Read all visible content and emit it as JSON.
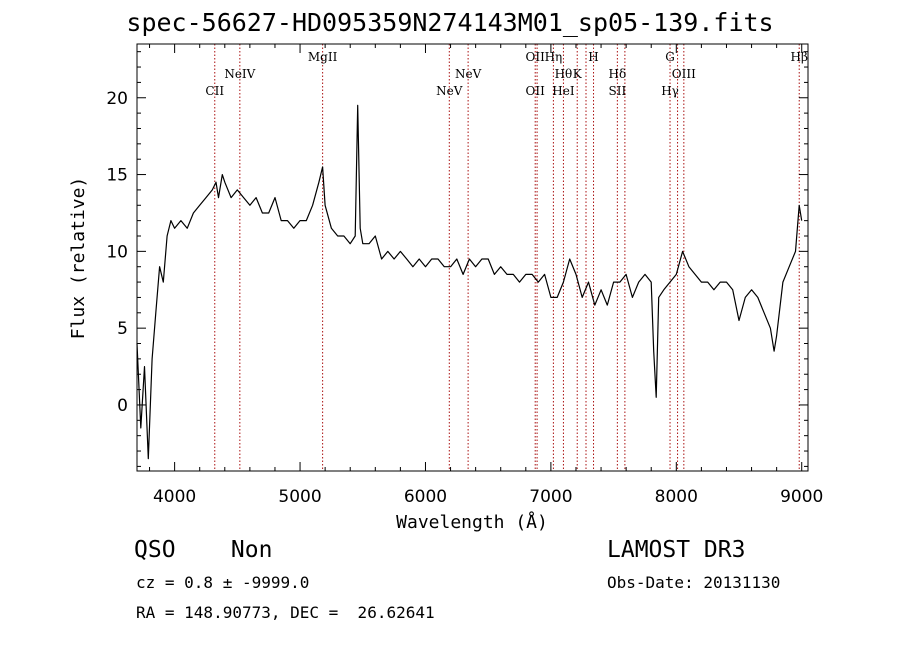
{
  "header": {
    "title": "spec-56627-HD095359N274143M01_sp05-139.fits"
  },
  "info": {
    "class_label": "QSO    Non",
    "cz_text": "cz = 0.8 ± -9999.0",
    "radec_text": "RA = 148.90773, DEC =  26.62641",
    "survey": "LAMOST DR3",
    "obs_date": "Obs-Date: 20131130"
  },
  "chart_data": {
    "type": "line",
    "title": "spec-56627-HD095359N274143M01_sp05-139.fits",
    "xlabel": "Wavelength (Å)",
    "ylabel": "Flux (relative)",
    "xlim": [
      3700,
      9050
    ],
    "ylim": [
      -4.3,
      23.5
    ],
    "xticks": [
      4000,
      5000,
      6000,
      7000,
      8000,
      9000
    ],
    "yticks": [
      0,
      5,
      10,
      15,
      20
    ],
    "series": [
      {
        "name": "flux",
        "x": [
          3700,
          3730,
          3760,
          3790,
          3820,
          3850,
          3880,
          3910,
          3940,
          3970,
          4000,
          4050,
          4100,
          4150,
          4200,
          4250,
          4300,
          4330,
          4350,
          4380,
          4400,
          4450,
          4500,
          4550,
          4600,
          4650,
          4700,
          4750,
          4800,
          4850,
          4900,
          4950,
          5000,
          5050,
          5100,
          5150,
          5180,
          5200,
          5250,
          5300,
          5350,
          5400,
          5440,
          5460,
          5480,
          5500,
          5550,
          5600,
          5650,
          5700,
          5750,
          5800,
          5850,
          5900,
          5950,
          6000,
          6050,
          6100,
          6150,
          6200,
          6250,
          6300,
          6350,
          6400,
          6450,
          6500,
          6550,
          6600,
          6650,
          6700,
          6750,
          6800,
          6850,
          6900,
          6950,
          7000,
          7050,
          7100,
          7150,
          7200,
          7250,
          7300,
          7350,
          7400,
          7450,
          7500,
          7550,
          7600,
          7650,
          7700,
          7750,
          7800,
          7820,
          7840,
          7860,
          7900,
          7950,
          8000,
          8050,
          8100,
          8150,
          8200,
          8250,
          8300,
          8350,
          8400,
          8450,
          8500,
          8550,
          8600,
          8650,
          8700,
          8750,
          8780,
          8800,
          8850,
          8900,
          8950,
          8980,
          9000
        ],
        "y": [
          4.0,
          -1.5,
          2.5,
          -3.5,
          3.0,
          6.0,
          9.0,
          8.0,
          11.0,
          12.0,
          11.5,
          12.0,
          11.5,
          12.5,
          13.0,
          13.5,
          14.0,
          14.5,
          13.5,
          15.0,
          14.5,
          13.5,
          14.0,
          13.5,
          13.0,
          13.5,
          12.5,
          12.5,
          13.5,
          12.0,
          12.0,
          11.5,
          12.0,
          12.0,
          13.0,
          14.5,
          15.5,
          13.0,
          11.5,
          11.0,
          11.0,
          10.5,
          11.0,
          19.5,
          11.5,
          10.5,
          10.5,
          11.0,
          9.5,
          10.0,
          9.5,
          10.0,
          9.5,
          9.0,
          9.5,
          9.0,
          9.5,
          9.5,
          9.0,
          9.0,
          9.5,
          8.5,
          9.5,
          9.0,
          9.5,
          9.5,
          8.5,
          9.0,
          8.5,
          8.5,
          8.0,
          8.5,
          8.5,
          8.0,
          8.5,
          7.0,
          7.0,
          8.0,
          9.5,
          8.5,
          7.0,
          8.0,
          6.5,
          7.5,
          6.5,
          8.0,
          8.0,
          8.5,
          7.0,
          8.0,
          8.5,
          8.0,
          3.5,
          0.5,
          7.0,
          7.5,
          8.0,
          8.5,
          10.0,
          9.0,
          8.5,
          8.0,
          8.0,
          7.5,
          8.0,
          8.0,
          7.5,
          5.5,
          7.0,
          7.5,
          7.0,
          6.0,
          5.0,
          3.5,
          4.5,
          8.0,
          9.0,
          10.0,
          13.0,
          12.0
        ]
      }
    ],
    "lines": [
      {
        "wave": 4320,
        "top": "",
        "bottom": "CII"
      },
      {
        "wave": 4520,
        "top": "NeIV",
        "bottom": ""
      },
      {
        "wave": 5180,
        "top": "MgII",
        "bottom": ""
      },
      {
        "wave": 6190,
        "top": "",
        "bottom": "NeV"
      },
      {
        "wave": 6340,
        "top": "NeV",
        "bottom": ""
      },
      {
        "wave": 6875,
        "top": "OII",
        "bottom": "OII"
      },
      {
        "wave": 6890,
        "top": "",
        "bottom": ""
      },
      {
        "wave": 7020,
        "top": "Hη",
        "bottom": ""
      },
      {
        "wave": 7100,
        "top": "Hθ",
        "bottom": "HeI"
      },
      {
        "wave": 7210,
        "top": "K",
        "bottom": ""
      },
      {
        "wave": 7280,
        "top": "",
        "bottom": ""
      },
      {
        "wave": 7340,
        "top": "H",
        "bottom": ""
      },
      {
        "wave": 7530,
        "top": "Hδ",
        "bottom": "SII"
      },
      {
        "wave": 7590,
        "top": "",
        "bottom": ""
      },
      {
        "wave": 7950,
        "top": "G",
        "bottom": "Hγ"
      },
      {
        "wave": 8010,
        "top": "",
        "bottom": ""
      },
      {
        "wave": 8060,
        "top": "OIII",
        "bottom": ""
      },
      {
        "wave": 8980,
        "top": "Hβ",
        "bottom": ""
      }
    ]
  },
  "colors": {
    "line_marker": "#aa1111",
    "spectrum": "#000000",
    "axes": "#000000",
    "background": "#ffffff"
  }
}
